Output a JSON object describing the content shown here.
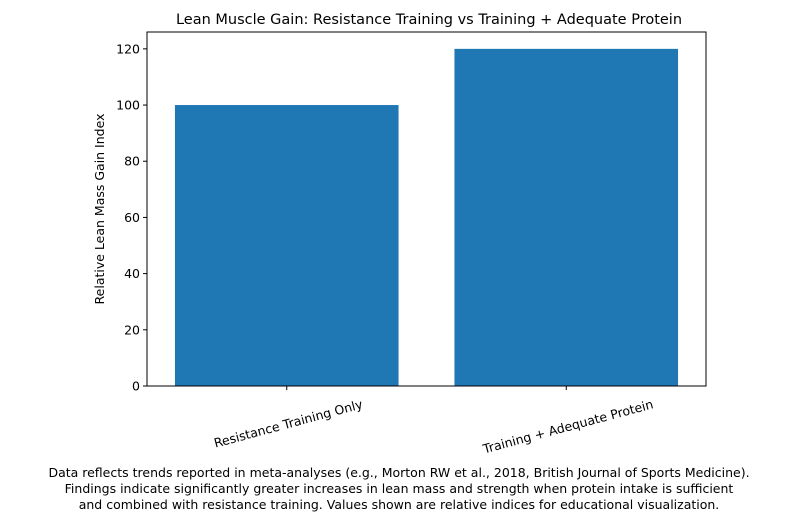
{
  "chart_data": {
    "type": "bar",
    "title": "Lean Muscle Gain: Resistance Training vs Training + Adequate Protein",
    "xlabel": "",
    "ylabel": "Relative Lean Mass Gain Index",
    "categories": [
      "Resistance Training Only",
      "Training + Adequate Protein"
    ],
    "values": [
      100,
      120
    ],
    "ylim": [
      0,
      126
    ],
    "yticks": [
      0,
      20,
      40,
      60,
      80,
      100,
      120
    ],
    "bar_color": "#1f77b4",
    "grid": false,
    "legend": "none"
  },
  "caption": {
    "line1": "Data reflects trends reported in meta-analyses (e.g., Morton RW et al., 2018, British Journal of Sports Medicine).",
    "line2": "Findings indicate significantly greater increases in lean mass and strength when protein intake is sufficient",
    "line3": "and combined with resistance training. Values shown are relative indices for educational visualization."
  }
}
